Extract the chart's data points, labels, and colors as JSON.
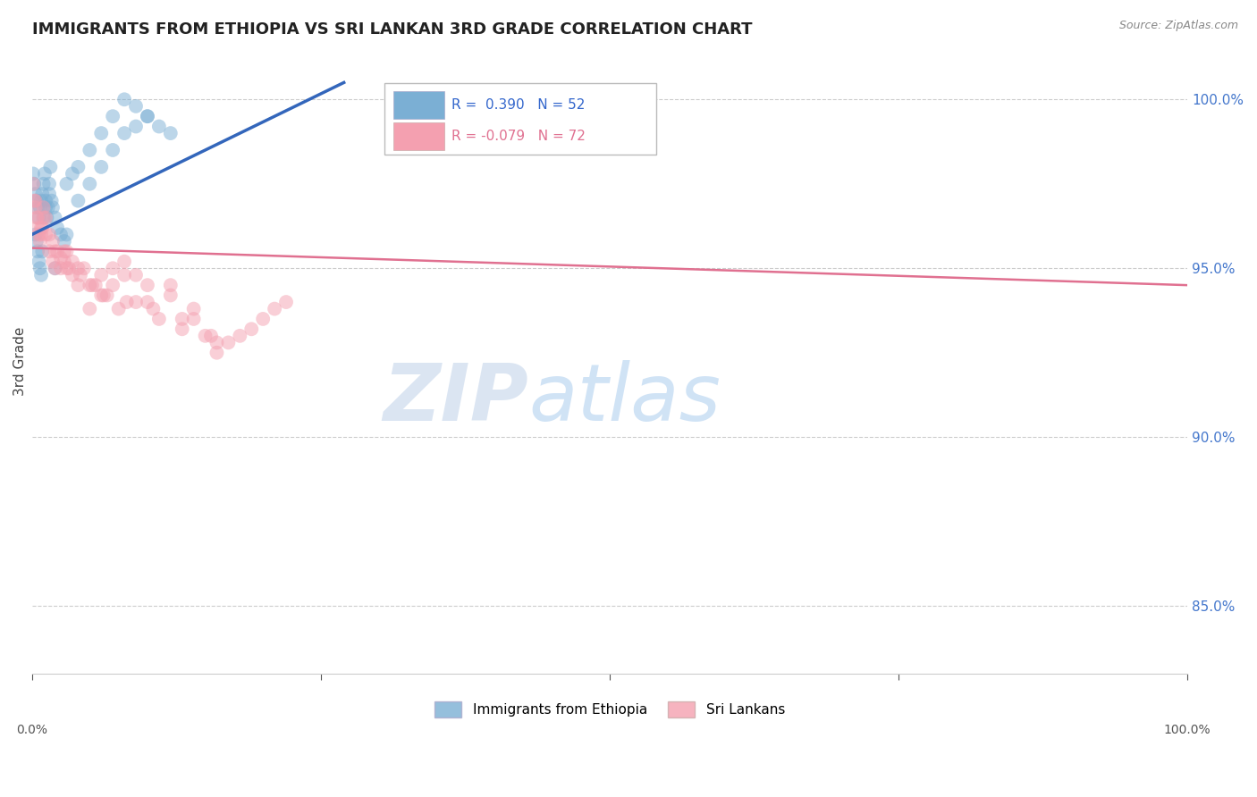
{
  "title": "IMMIGRANTS FROM ETHIOPIA VS SRI LANKAN 3RD GRADE CORRELATION CHART",
  "source": "Source: ZipAtlas.com",
  "ylabel": "3rd Grade",
  "blue_R": 0.39,
  "blue_N": 52,
  "pink_R": -0.079,
  "pink_N": 72,
  "blue_color": "#7BAFD4",
  "pink_color": "#F4A0B0",
  "blue_line_color": "#3366BB",
  "pink_line_color": "#E07090",
  "blue_label": "Immigrants from Ethiopia",
  "pink_label": "Sri Lankans",
  "legend_R_color": "#3366CC",
  "watermark_zip": "ZIP",
  "watermark_atlas": "atlas",
  "xlim": [
    0,
    100
  ],
  "ylim": [
    83,
    101.5
  ],
  "yticks": [
    85.0,
    90.0,
    95.0,
    100.0
  ],
  "blue_x": [
    0.1,
    0.2,
    0.3,
    0.4,
    0.5,
    0.6,
    0.7,
    0.8,
    0.9,
    1.0,
    1.1,
    1.2,
    1.3,
    1.4,
    1.5,
    1.6,
    1.7,
    1.8,
    2.0,
    2.2,
    2.5,
    2.8,
    3.0,
    3.5,
    4.0,
    5.0,
    6.0,
    7.0,
    8.0,
    9.0,
    10.0,
    11.0,
    0.3,
    0.4,
    0.5,
    0.6,
    0.7,
    0.8,
    0.9,
    1.0,
    1.2,
    1.5,
    2.0,
    3.0,
    4.0,
    5.0,
    6.0,
    7.0,
    8.0,
    9.0,
    10.0,
    12.0
  ],
  "blue_y": [
    97.8,
    97.5,
    97.2,
    97.0,
    96.8,
    96.5,
    96.8,
    97.0,
    97.2,
    97.5,
    97.8,
    97.0,
    96.5,
    96.8,
    97.5,
    98.0,
    97.0,
    96.8,
    96.5,
    96.2,
    96.0,
    95.8,
    97.5,
    97.8,
    98.0,
    98.5,
    99.0,
    99.5,
    100.0,
    99.8,
    99.5,
    99.2,
    96.0,
    95.8,
    95.5,
    95.2,
    95.0,
    94.8,
    95.5,
    96.5,
    96.8,
    97.2,
    95.0,
    96.0,
    97.0,
    97.5,
    98.0,
    98.5,
    99.0,
    99.2,
    99.5,
    99.0
  ],
  "pink_x": [
    0.1,
    0.2,
    0.3,
    0.4,
    0.5,
    0.6,
    0.7,
    0.8,
    0.9,
    1.0,
    1.2,
    1.5,
    1.8,
    2.0,
    2.5,
    3.0,
    3.5,
    4.0,
    5.0,
    6.0,
    7.0,
    8.0,
    9.0,
    10.0,
    12.0,
    14.0,
    16.0,
    18.0,
    20.0,
    22.0,
    0.3,
    0.5,
    0.8,
    1.0,
    1.5,
    2.0,
    2.5,
    3.0,
    4.0,
    5.0,
    7.0,
    9.0,
    11.0,
    13.0,
    15.0,
    17.0,
    19.0,
    21.0,
    6.0,
    8.0,
    3.5,
    2.8,
    4.5,
    5.5,
    6.5,
    7.5,
    10.0,
    12.0,
    14.0,
    16.0,
    1.2,
    1.8,
    2.2,
    2.8,
    3.2,
    4.2,
    5.2,
    6.2,
    8.2,
    10.5,
    13.0,
    15.5
  ],
  "pink_y": [
    97.5,
    97.0,
    96.8,
    96.5,
    96.2,
    96.0,
    95.8,
    96.0,
    96.2,
    96.5,
    96.0,
    95.5,
    95.2,
    95.0,
    95.3,
    95.0,
    94.8,
    95.0,
    94.5,
    94.8,
    95.0,
    95.2,
    94.8,
    94.5,
    94.2,
    93.8,
    92.5,
    93.0,
    93.5,
    94.0,
    97.0,
    96.5,
    96.2,
    96.8,
    96.0,
    95.5,
    95.0,
    95.5,
    94.5,
    93.8,
    94.5,
    94.0,
    93.5,
    93.2,
    93.0,
    92.8,
    93.2,
    93.8,
    94.2,
    94.8,
    95.2,
    95.5,
    95.0,
    94.5,
    94.2,
    93.8,
    94.0,
    94.5,
    93.5,
    92.8,
    96.5,
    95.8,
    95.5,
    95.2,
    95.0,
    94.8,
    94.5,
    94.2,
    94.0,
    93.8,
    93.5,
    93.0
  ],
  "blue_trend_x": [
    0,
    27
  ],
  "blue_trend_y_start": 96.0,
  "blue_trend_y_end": 100.5,
  "pink_trend_x": [
    0,
    100
  ],
  "pink_trend_y_start": 95.6,
  "pink_trend_y_end": 94.5
}
